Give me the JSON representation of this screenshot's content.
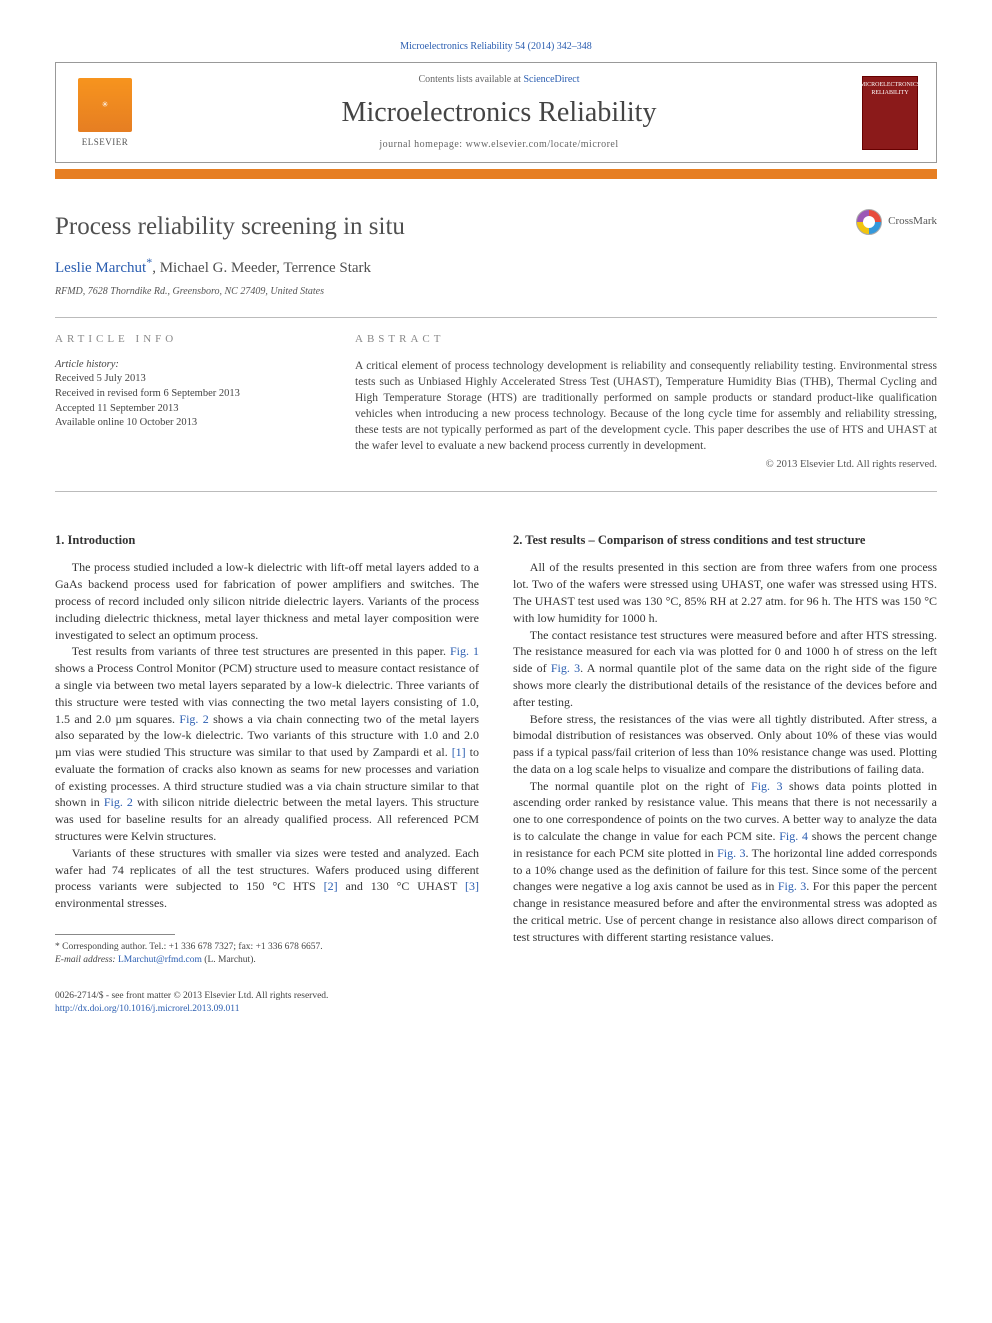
{
  "top_citation": "Microelectronics Reliability 54 (2014) 342–348",
  "masthead": {
    "contents_prefix": "Contents lists available at ",
    "contents_link": "ScienceDirect",
    "journal": "Microelectronics Reliability",
    "homepage_prefix": "journal homepage: ",
    "homepage_url": "www.elsevier.com/locate/microrel",
    "publisher": "ELSEVIER",
    "cover_text": "MICROELECTRONICS RELIABILITY"
  },
  "orange_bar_color": "#e67e22",
  "crossmark_label": "CrossMark",
  "article": {
    "title": "Process reliability screening in situ",
    "authors_html": {
      "a1_name": "Leslie Marchut",
      "a1_mark": "*",
      "sep1": ", ",
      "a2_name": "Michael G. Meeder",
      "sep2": ", ",
      "a3_name": "Terrence Stark"
    },
    "affiliation": "RFMD, 7628 Thorndike Rd., Greensboro, NC 27409, United States"
  },
  "meta": {
    "info_header": "ARTICLE INFO",
    "abstract_header": "ABSTRACT",
    "history_label": "Article history:",
    "history": [
      "Received 5 July 2013",
      "Received in revised form 6 September 2013",
      "Accepted 11 September 2013",
      "Available online 10 October 2013"
    ],
    "abstract": "A critical element of process technology development is reliability and consequently reliability testing. Environmental stress tests such as Unbiased Highly Accelerated Stress Test (UHAST), Temperature Humidity Bias (THB), Thermal Cycling and High Temperature Storage (HTS) are traditionally performed on sample products or standard product-like qualification vehicles when introducing a new process technology. Because of the long cycle time for assembly and reliability stressing, these tests are not typically performed as part of the development cycle. This paper describes the use of HTS and UHAST at the wafer level to evaluate a new backend process currently in development.",
    "copyright": "© 2013 Elsevier Ltd. All rights reserved."
  },
  "body": {
    "left": {
      "h": "1. Introduction",
      "p1": "The process studied included a low-k dielectric with lift-off metal layers added to a GaAs backend process used for fabrication of power amplifiers and switches. The process of record included only silicon nitride dielectric layers. Variants of the process including dielectric thickness, metal layer thickness and metal layer composition were investigated to select an optimum process.",
      "p2a": "Test results from variants of three test structures are presented in this paper. ",
      "fig1": "Fig. 1",
      "p2b": " shows a Process Control Monitor (PCM) structure used to measure contact resistance of a single via between two metal layers separated by a low-k dielectric. Three variants of this structure were tested with vias connecting the two metal layers consisting of 1.0, 1.5 and 2.0 µm squares. ",
      "fig2": "Fig. 2",
      "p2c": " shows a via chain connecting two of the metal layers also separated by the low-k dielectric. Two variants of this structure with 1.0 and 2.0 µm vias were studied This structure was similar to that used by Zampardi et al. ",
      "ref1": "[1]",
      "p2d": " to evaluate the formation of cracks also known as seams for new processes and variation of existing processes. A third structure studied was a via chain structure similar to that shown in ",
      "fig2b": "Fig. 2",
      "p2e": " with silicon nitride dielectric between the metal layers. This structure was used for baseline results for an already qualified process. All referenced PCM structures were Kelvin structures.",
      "p3a": "Variants of these structures with smaller via sizes were tested and analyzed. Each wafer had 74 replicates of all the test structures. Wafers produced using different process variants were subjected to 150 °C HTS ",
      "ref2": "[2]",
      "p3b": " and 130 °C UHAST ",
      "ref3": "[3]",
      "p3c": " environmental stresses."
    },
    "right": {
      "h": "2. Test results – Comparison of stress conditions and test structure",
      "p1": "All of the results presented in this section are from three wafers from one process lot. Two of the wafers were stressed using UHAST, one wafer was stressed using HTS. The UHAST test used was 130 °C, 85% RH at 2.27 atm. for 96 h. The HTS was 150 °C with low humidity for 1000 h.",
      "p2a": "The contact resistance test structures were measured before and after HTS stressing. The resistance measured for each via was plotted for 0 and 1000 h of stress on the left side of ",
      "fig3": "Fig. 3",
      "p2b": ". A normal quantile plot of the same data on the right side of the figure shows more clearly the distributional details of the resistance of the devices before and after testing.",
      "p3": "Before stress, the resistances of the vias were all tightly distributed. After stress, a bimodal distribution of resistances was observed. Only about 10% of these vias would pass if a typical pass/fail criterion of less than 10% resistance change was used. Plotting the data on a log scale helps to visualize and compare the distributions of failing data.",
      "p4a": "The normal quantile plot on the right of ",
      "fig3b": "Fig. 3",
      "p4b": " shows data points plotted in ascending order ranked by resistance value. This means that there is not necessarily a one to one correspondence of points on the two curves. A better way to analyze the data is to calculate the change in value for each PCM site. ",
      "fig4": "Fig. 4",
      "p4c": " shows the percent change in resistance for each PCM site plotted in ",
      "fig3c": "Fig. 3",
      "p4d": ". The horizontal line added corresponds to a 10% change used as the definition of failure for this test. Since some of the percent changes were negative a log axis cannot be used as in ",
      "fig3d": "Fig. 3",
      "p4e": ". For this paper the percent change in resistance measured before and after the environmental stress was adopted as the critical metric. Use of percent change in resistance also allows direct comparison of test structures with different starting resistance values."
    }
  },
  "footnote": {
    "mark": "*",
    "text": " Corresponding author. Tel.: +1 336 678 7327; fax: +1 336 678 6657.",
    "email_label": "E-mail address: ",
    "email": "LMarchut@rfmd.com",
    "email_tail": " (L. Marchut)."
  },
  "bottom": {
    "line1": "0026-2714/$ - see front matter © 2013 Elsevier Ltd. All rights reserved.",
    "doi": "http://dx.doi.org/10.1016/j.microrel.2013.09.011"
  },
  "colors": {
    "link": "#2a5db0",
    "orange": "#e67e22",
    "cover": "#8b1a1a",
    "text": "#333333",
    "rule": "#bbbbbb"
  }
}
